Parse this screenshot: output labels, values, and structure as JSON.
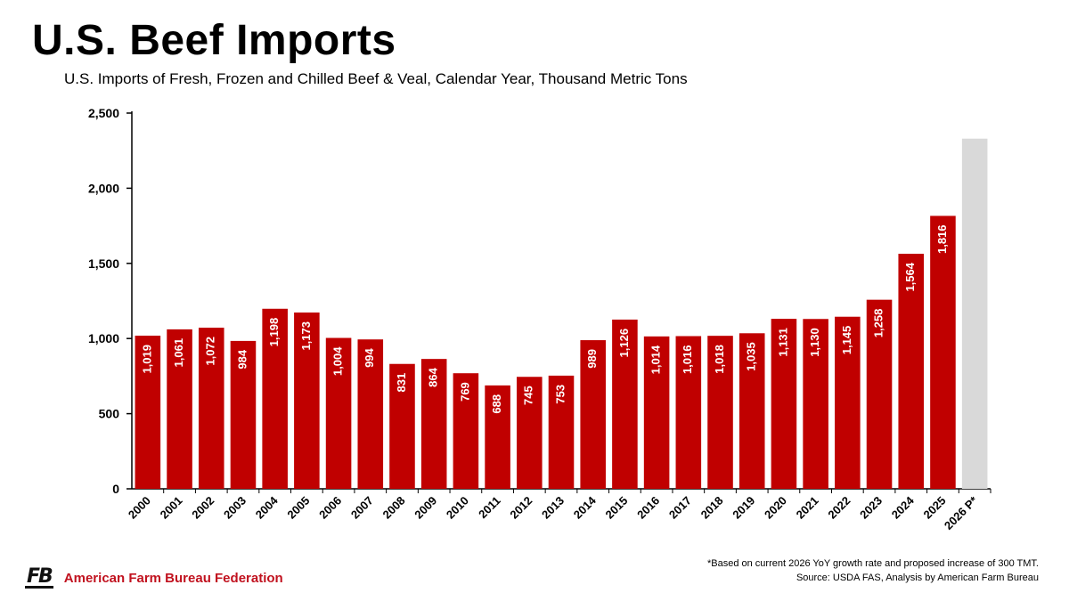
{
  "title": "U.S. Beef Imports",
  "subtitle": "U.S. Imports of Fresh, Frozen and Chilled Beef & Veal, Calendar Year, Thousand Metric Tons",
  "colors": {
    "bar": "#c00000",
    "projection": "#d9d9d9",
    "axis": "#000000",
    "label": "#ffffff",
    "brand": "#c1121f"
  },
  "chart_data": {
    "type": "bar",
    "title": "U.S. Beef Imports",
    "xlabel": "",
    "ylabel": "",
    "ylim": [
      0,
      2500
    ],
    "yticks": [
      0,
      500,
      1000,
      1500,
      2000,
      2500
    ],
    "ytick_labels": [
      "0",
      "500",
      "1,000",
      "1,500",
      "2,000",
      "2,500"
    ],
    "grid": false,
    "legend": "none",
    "categories": [
      "2000",
      "2001",
      "2002",
      "2003",
      "2004",
      "2005",
      "2006",
      "2007",
      "2008",
      "2009",
      "2010",
      "2011",
      "2012",
      "2013",
      "2014",
      "2015",
      "2016",
      "2017",
      "2018",
      "2019",
      "2020",
      "2021",
      "2022",
      "2023",
      "2024",
      "2025",
      "2026 P*"
    ],
    "values": [
      1019,
      1061,
      1072,
      984,
      1198,
      1173,
      1004,
      994,
      831,
      864,
      769,
      688,
      745,
      753,
      989,
      1126,
      1014,
      1016,
      1018,
      1035,
      1131,
      1130,
      1145,
      1258,
      1564,
      1816,
      2330
    ],
    "data_labels": [
      "1,019",
      "1,061",
      "1,072",
      "984",
      "1,198",
      "1,173",
      "1,004",
      "994",
      "831",
      "864",
      "769",
      "688",
      "745",
      "753",
      "989",
      "1,126",
      "1,014",
      "1,016",
      "1,018",
      "1,035",
      "1,131",
      "1,130",
      "1,145",
      "1,258",
      "1,564",
      "1,816",
      ""
    ],
    "projected_index": 26
  },
  "footnote": {
    "line1": "*Based on current 2026 YoY growth rate and proposed increase of 300 TMT.",
    "line2": "Source: USDA FAS, Analysis by American Farm Bureau"
  },
  "logo": {
    "mark": "FB",
    "text": "American Farm Bureau Federation"
  }
}
